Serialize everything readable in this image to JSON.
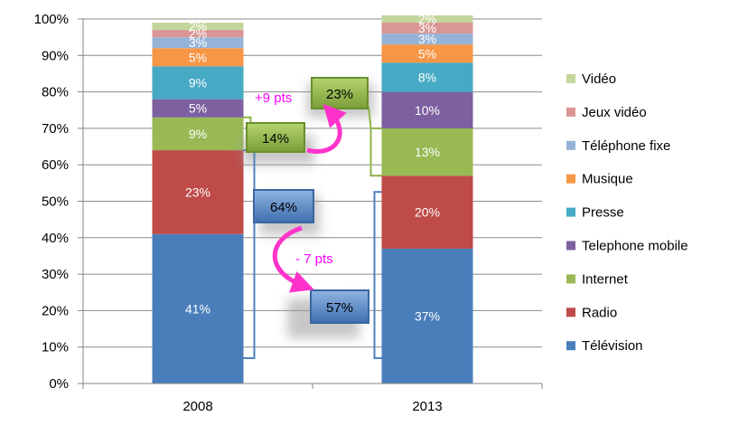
{
  "chart_data": {
    "type": "bar",
    "stacked": true,
    "percent": true,
    "categories": [
      "2008",
      "2013"
    ],
    "ylim": [
      0,
      100
    ],
    "yticks": [
      "0%",
      "10%",
      "20%",
      "30%",
      "40%",
      "50%",
      "60%",
      "70%",
      "80%",
      "90%",
      "100%"
    ],
    "grid": true,
    "legend_position": "right",
    "series": [
      {
        "name": "Télévision",
        "color": "#4a7ebb",
        "values": [
          41,
          37
        ],
        "labels": [
          "41%",
          "37%"
        ]
      },
      {
        "name": "Radio",
        "color": "#be4b48",
        "values": [
          23,
          20
        ],
        "labels": [
          "23%",
          "20%"
        ]
      },
      {
        "name": "Internet",
        "color": "#98b954",
        "values": [
          9,
          13
        ],
        "labels": [
          "9%",
          "13%"
        ]
      },
      {
        "name": "Telephone mobile",
        "color": "#7d60a0",
        "values": [
          5,
          10
        ],
        "labels": [
          "5%",
          "10%"
        ]
      },
      {
        "name": "Presse",
        "color": "#46aac5",
        "values": [
          9,
          8
        ],
        "labels": [
          "9%",
          "8%"
        ]
      },
      {
        "name": "Musique",
        "color": "#f79646",
        "values": [
          5,
          5
        ],
        "labels": [
          "5%",
          "5%"
        ]
      },
      {
        "name": "Téléphone fixe",
        "color": "#95b3d7",
        "values": [
          3,
          3
        ],
        "labels": [
          "3%",
          "3%"
        ]
      },
      {
        "name": "Jeux vidéo",
        "color": "#d99694",
        "values": [
          2,
          3
        ],
        "labels": [
          "2%",
          "3%"
        ]
      },
      {
        "name": "Vidéo",
        "color": "#c3d69b",
        "values": [
          2,
          2
        ],
        "labels": [
          "2%",
          "2%"
        ]
      }
    ],
    "annotations": {
      "internet_2008": "14%",
      "internet_2013": "23%",
      "internet_change": "+9 pts",
      "tv_radio_2008": "64%",
      "tv_radio_2013": "57%",
      "tv_radio_change": "- 7 pts"
    },
    "colors": {
      "green_box": "#8db346",
      "blue_box": "#4f81bd",
      "arrow": "#ff33cc",
      "axis": "#868686"
    }
  }
}
